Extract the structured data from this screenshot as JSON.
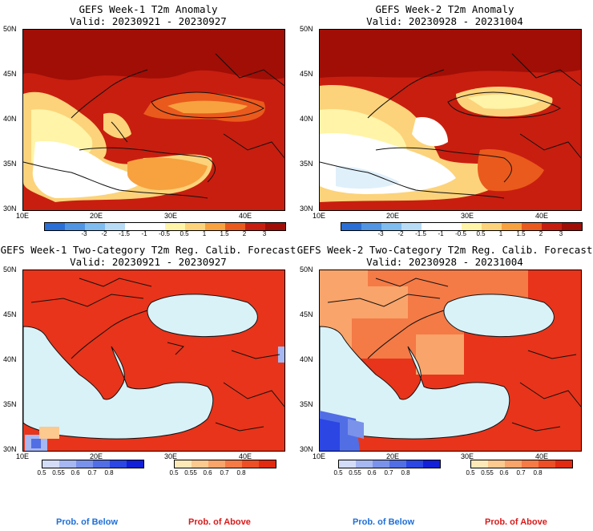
{
  "panels": {
    "tl": {
      "title": "GEFS Week-1 T2m Anomaly",
      "valid": "Valid: 20230921 - 20230927"
    },
    "tr": {
      "title": "GEFS Week-2 T2m Anomaly",
      "valid": "Valid: 20230928 - 20231004"
    },
    "bl": {
      "title": "GEFS Week-1 Two-Category T2m Reg. Calib. Forecast",
      "valid": "Valid: 20230921 - 20230927"
    },
    "br": {
      "title": "GEFS Week-2 Two-Category T2m Reg. Calib. Forecast",
      "valid": "Valid: 20230928 - 20231004"
    }
  },
  "axes": {
    "lat_labels": [
      "50N",
      "45N",
      "40N",
      "35N",
      "30N"
    ],
    "lon_labels": [
      "10E",
      "20E",
      "30E",
      "40E"
    ]
  },
  "anomaly_colorbar": {
    "colors": [
      "#2a6fd6",
      "#4f95e3",
      "#7fbcef",
      "#b8dcf5",
      "#ffffff",
      "#ffffff",
      "#fff4a8",
      "#fcd37a",
      "#f7a23f",
      "#ea5a1c",
      "#c81e0f",
      "#a00e06"
    ],
    "labels": [
      "-3",
      "-2",
      "-1.5",
      "-1",
      "-0.5",
      "0.5",
      "1",
      "1.5",
      "2",
      "3"
    ]
  },
  "prob_colorbars": {
    "below": {
      "colors": [
        "#d4ddf8",
        "#a6b7f1",
        "#7a92ea",
        "#516ee5",
        "#2b46e3",
        "#1220d8"
      ],
      "labels": [
        "0.5",
        "0.55",
        "0.6",
        "0.7",
        "0.8"
      ]
    },
    "above": {
      "colors": [
        "#fde9b8",
        "#fcc98f",
        "#f9a46a",
        "#f47a46",
        "#ec4e25",
        "#e12a10"
      ],
      "labels": [
        "0.5",
        "0.55",
        "0.6",
        "0.7",
        "0.8"
      ]
    }
  },
  "footer": {
    "below": "Prob. of Below",
    "above": "Prob. of Above",
    "below_color": "#1e6fd8",
    "above_color": "#d81b1b"
  },
  "colors": {
    "sea_probability": "#d8f2f8",
    "land_probability": "#e8341a"
  }
}
